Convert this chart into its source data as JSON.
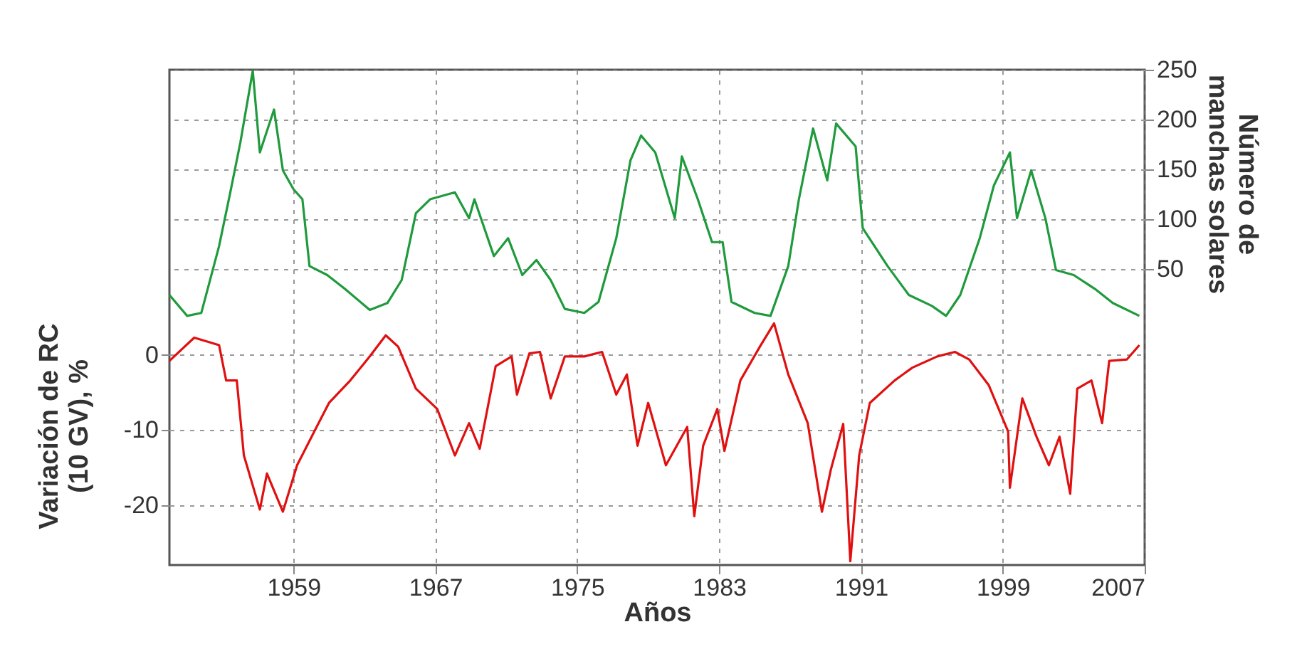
{
  "chart_data": {
    "type": "line",
    "xlabel": "Años",
    "ylabel": "Variación de RC\n(10 GV), %",
    "y2label": "Número de\nmanchas solares",
    "xlim": [
      1952,
      2007
    ],
    "xticks": [
      1959,
      1967,
      1975,
      1983,
      1991,
      1999,
      2007
    ],
    "ylim": [
      -28,
      38
    ],
    "yticks": [
      -20,
      -10,
      0
    ],
    "y2lim": [
      -247,
      250
    ],
    "y2ticks": [
      50,
      100,
      150,
      200,
      250
    ],
    "grid": true,
    "series": [
      {
        "color": "#1f9a3c",
        "axis": "y2",
        "x": [
          1952.0,
          1953.0,
          1953.8,
          1954.8,
          1955.4,
          1956.0,
          1956.7,
          1957.1,
          1957.9,
          1958.4,
          1959.0,
          1959.5,
          1959.9,
          1960.9,
          1961.9,
          1963.3,
          1964.3,
          1965.1,
          1965.9,
          1966.7,
          1968.1,
          1968.9,
          1969.2,
          1970.3,
          1971.1,
          1971.9,
          1972.7,
          1973.5,
          1974.3,
          1975.4,
          1976.2,
          1977.2,
          1978.0,
          1978.6,
          1979.4,
          1980.5,
          1980.9,
          1981.8,
          1982.6,
          1983.2,
          1983.7,
          1985.0,
          1985.9,
          1986.9,
          1987.5,
          1988.3,
          1989.1,
          1989.6,
          1990.7,
          1991.1,
          1992.5,
          1993.7,
          1995.0,
          1995.8,
          1996.6,
          1997.7,
          1998.5,
          1999.4,
          1999.8,
          2000.6,
          2001.4,
          2002.0,
          2003.0,
          2004.2,
          2005.2,
          2006.7
        ],
        "values": [
          24,
          3,
          6,
          73,
          124,
          177,
          249,
          167,
          210,
          149,
          130,
          120,
          53,
          44,
          30,
          9,
          16,
          39,
          106,
          120,
          127,
          101,
          120,
          63,
          81,
          44,
          59,
          39,
          10,
          6,
          17,
          81,
          159,
          184,
          167,
          101,
          163,
          120,
          77,
          77,
          17,
          6,
          3,
          53,
          120,
          191,
          139,
          196,
          173,
          91,
          53,
          24,
          13,
          3,
          24,
          81,
          134,
          167,
          101,
          149,
          101,
          49,
          44,
          30,
          16,
          3
        ]
      },
      {
        "color": "#e01010",
        "x": [
          1952.0,
          1953.4,
          1954.8,
          1955.2,
          1955.8,
          1956.2,
          1957.1,
          1957.5,
          1958.4,
          1959.2,
          1960.3,
          1961.0,
          1962.2,
          1963.3,
          1964.2,
          1964.9,
          1965.9,
          1967.1,
          1968.1,
          1968.9,
          1969.5,
          1970.4,
          1971.3,
          1971.6,
          1972.3,
          1972.9,
          1973.5,
          1974.3,
          1975.4,
          1976.4,
          1977.2,
          1977.8,
          1978.4,
          1979.0,
          1980.0,
          1981.2,
          1981.6,
          1982.1,
          1982.9,
          1983.3,
          1984.2,
          1985.3,
          1986.1,
          1986.9,
          1988.0,
          1988.8,
          1989.3,
          1990.0,
          1990.4,
          1990.9,
          1991.5,
          1992.9,
          1993.9,
          1995.3,
          1996.3,
          1997.1,
          1998.2,
          1999.3,
          1999.4,
          2000.1,
          2000.9,
          2001.6,
          2002.2,
          2002.8,
          2003.2,
          2004.0,
          2004.6,
          2005.0,
          2006.0,
          2006.7
        ],
        "values": [
          -0.8,
          2.3,
          1.3,
          -3.4,
          -3.4,
          -13.4,
          -20.6,
          -15.8,
          -20.9,
          -14.7,
          -9.6,
          -6.4,
          -3.4,
          -0.2,
          2.6,
          1.1,
          -4.5,
          -7.2,
          -13.4,
          -9.1,
          -12.5,
          -1.5,
          -0.2,
          -5.3,
          0.2,
          0.4,
          -5.8,
          -0.2,
          -0.2,
          0.4,
          -5.3,
          -2.6,
          -12.1,
          -6.4,
          -14.7,
          -9.6,
          -21.5,
          -12.1,
          -7.2,
          -12.8,
          -3.4,
          1.1,
          4.2,
          -2.6,
          -9.1,
          -20.9,
          -15.3,
          -9.2,
          -27.5,
          -13.4,
          -6.4,
          -3.4,
          -1.7,
          -0.2,
          0.4,
          -0.6,
          -4.0,
          -10.2,
          -17.7,
          -5.8,
          -10.9,
          -14.7,
          -10.9,
          -18.5,
          -4.5,
          -3.4,
          -9.1,
          -0.8,
          -0.6,
          1.3
        ]
      }
    ]
  }
}
